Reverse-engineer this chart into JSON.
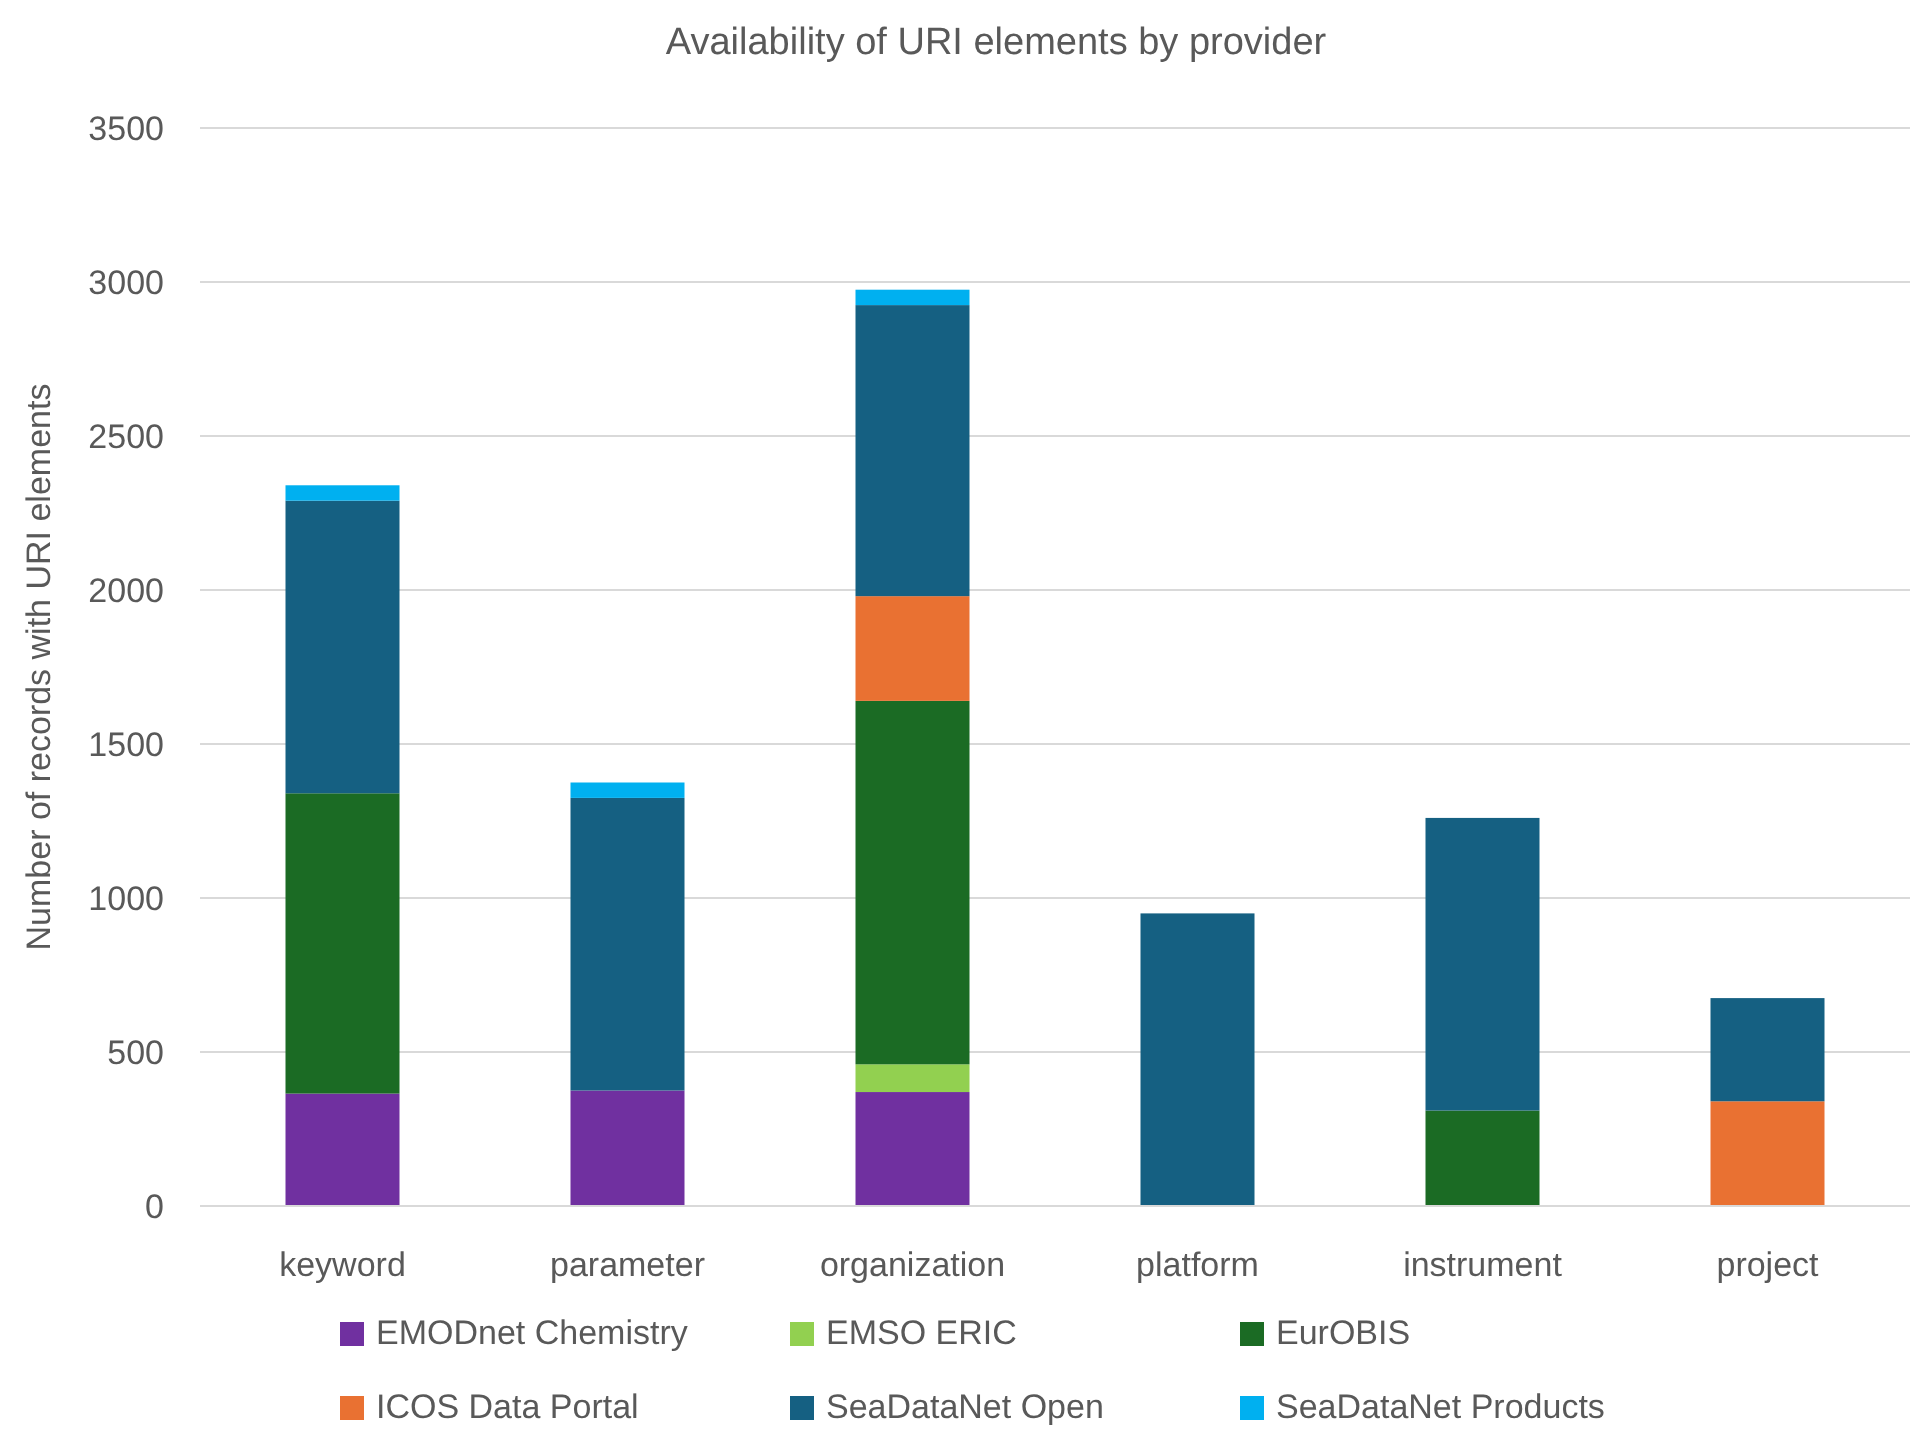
{
  "chart_data": {
    "type": "bar",
    "title": "Availability of URI elements by provider",
    "ylabel": "Number of records with URI elements",
    "categories": [
      "keyword",
      "parameter",
      "organization",
      "platform",
      "instrument",
      "project"
    ],
    "stacked": true,
    "ylim": [
      0,
      3500
    ],
    "yticks": [
      0,
      500,
      1000,
      1500,
      2000,
      2500,
      3000,
      3500
    ],
    "grid": "y",
    "legend": "bottom",
    "series": [
      {
        "name": "EMODnet Chemistry",
        "color": "#7030a0",
        "values": [
          365,
          375,
          370,
          null,
          null,
          null
        ]
      },
      {
        "name": "EMSO ERIC",
        "color": "#92d050",
        "values": [
          null,
          null,
          90,
          null,
          null,
          null
        ]
      },
      {
        "name": "EurOBIS",
        "color": "#1b6b24",
        "values": [
          975,
          null,
          1180,
          null,
          310,
          null
        ]
      },
      {
        "name": "ICOS Data Portal",
        "color": "#e97132",
        "values": [
          null,
          null,
          340,
          null,
          null,
          340
        ]
      },
      {
        "name": "SeaDataNet Open",
        "color": "#156082",
        "values": [
          950,
          950,
          945,
          950,
          950,
          335
        ]
      },
      {
        "name": "SeaDataNet Products",
        "color": "#00b0f0",
        "values": [
          50,
          50,
          50,
          null,
          null,
          null
        ]
      }
    ]
  }
}
